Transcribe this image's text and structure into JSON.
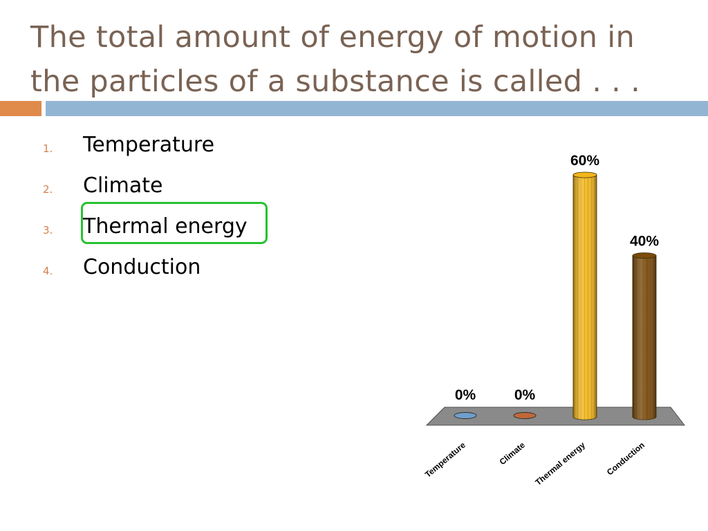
{
  "slide": {
    "title_line1": "The total amount of energy of motion in",
    "title_line2": "the particles of a substance is called . . ."
  },
  "answers": [
    {
      "num": "1.",
      "label": "Temperature"
    },
    {
      "num": "2.",
      "label": "Climate"
    },
    {
      "num": "3.",
      "label": "Thermal energy"
    },
    {
      "num": "4.",
      "label": "Conduction"
    }
  ],
  "correct_answer_index": 2,
  "colors": {
    "title": "#7a6354",
    "accent_orange": "#e08a4c",
    "accent_blue": "#93b5d4",
    "correct_outline": "#27c22f"
  },
  "chart_data": {
    "type": "bar",
    "categories": [
      "Temperature",
      "Climate",
      "Thermal energy",
      "Conduction"
    ],
    "values": [
      0,
      0,
      60,
      40
    ],
    "value_labels": [
      "0%",
      "0%",
      "60%",
      "40%"
    ],
    "unit": "%",
    "ylim": [
      0,
      60
    ],
    "grid": false,
    "legend": "none",
    "style": "3d-cylinder",
    "colors": [
      "#6f9fcb",
      "#c0683a",
      "#f2b61a",
      "#7a4b0a"
    ]
  }
}
